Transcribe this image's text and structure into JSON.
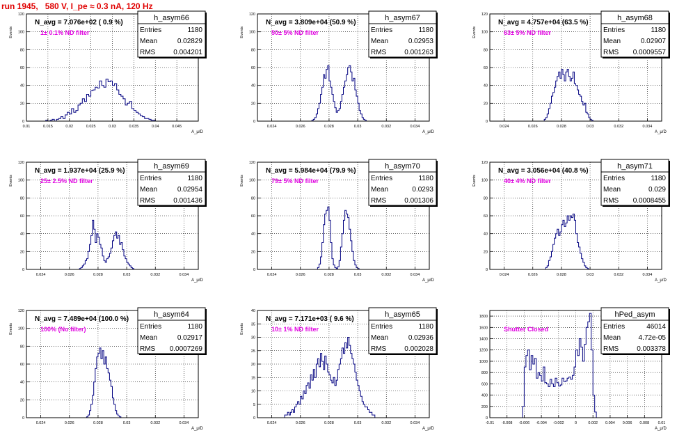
{
  "page_title": "run 1945,   580 V, I_pe ≈ 0.3 nA, 120 Hz",
  "colors": {
    "title": "#e00000",
    "histogram": "#000080",
    "annotation": "#e000e0",
    "grid": "#000000"
  },
  "chart_data": [
    {
      "type": "histogram",
      "hist_name": "h_asym66",
      "title": "N_avg = 7.076e+02 ( 0.9 %)",
      "annotation": "1± 0.1% ND filter",
      "stats": [
        {
          "label": "Entries",
          "value": "1180"
        },
        {
          "label": "Mean",
          "value": "0.02829"
        },
        {
          "label": "RMS",
          "value": "0.004201"
        }
      ],
      "xlabel": "A_μ/D",
      "ylabel": "Events",
      "xlim": [
        0.01,
        0.05
      ],
      "ylim": [
        0,
        120
      ],
      "xticks": [
        0.01,
        0.015,
        0.02,
        0.025,
        0.03,
        0.035,
        0.04,
        0.045
      ],
      "xtick_labels": [
        "0.01",
        "0.015",
        "0.02",
        "0.025",
        "0.03",
        "0.035",
        "0.04",
        "0.045"
      ],
      "yticks": [
        0,
        20,
        40,
        60,
        80,
        100,
        120
      ],
      "grid": true,
      "bins": {
        "start": 0.0145,
        "width": 0.0005,
        "values": [
          1,
          0,
          1,
          2,
          0,
          2,
          3,
          5,
          3,
          7,
          10,
          8,
          14,
          10,
          12,
          18,
          20,
          25,
          22,
          30,
          28,
          34,
          35,
          38,
          37,
          45,
          40,
          38,
          47,
          44,
          45,
          40,
          42,
          35,
          30,
          28,
          25,
          18,
          20,
          22,
          14,
          12,
          10,
          8,
          6,
          5,
          3,
          3,
          2,
          1,
          1
        ]
      }
    },
    {
      "type": "histogram",
      "hist_name": "h_asym67",
      "title": "N_avg = 3.809e+04 (50.9 %)",
      "annotation": "50± 5% ND filter",
      "stats": [
        {
          "label": "Entries",
          "value": "1180"
        },
        {
          "label": "Mean",
          "value": "0.02953"
        },
        {
          "label": "RMS",
          "value": "0.001263"
        }
      ],
      "xlabel": "A_μ/D",
      "ylabel": "Events",
      "xlim": [
        0.023,
        0.035
      ],
      "ylim": [
        0,
        120
      ],
      "xticks": [
        0.024,
        0.026,
        0.028,
        0.03,
        0.032,
        0.034
      ],
      "xtick_labels": [
        "0.024",
        "0.026",
        "0.028",
        "0.03",
        "0.032",
        "0.034"
      ],
      "yticks": [
        0,
        20,
        40,
        60,
        80,
        100,
        120
      ],
      "grid": true,
      "bins": {
        "start": 0.0268,
        "width": 0.0001,
        "values": [
          1,
          2,
          4,
          8,
          14,
          20,
          30,
          38,
          52,
          48,
          58,
          62,
          45,
          38,
          30,
          22,
          15,
          10,
          12,
          14,
          22,
          30,
          38,
          45,
          52,
          60,
          62,
          55,
          45,
          48,
          35,
          28,
          20,
          12,
          8,
          4,
          2,
          1
        ]
      }
    },
    {
      "type": "histogram",
      "hist_name": "h_asym68",
      "title": "N_avg = 4.757e+04 (63.5 %)",
      "annotation": "63± 5% ND filter",
      "stats": [
        {
          "label": "Entries",
          "value": "1180"
        },
        {
          "label": "Mean",
          "value": "0.02907"
        },
        {
          "label": "RMS",
          "value": "0.0009557"
        }
      ],
      "xlabel": "A_μ/D",
      "ylabel": "Events",
      "xlim": [
        0.023,
        0.035
      ],
      "ylim": [
        0,
        120
      ],
      "xticks": [
        0.024,
        0.026,
        0.028,
        0.03,
        0.032,
        0.034
      ],
      "xtick_labels": [
        "0.024",
        "0.026",
        "0.028",
        "0.03",
        "0.032",
        "0.034"
      ],
      "yticks": [
        0,
        20,
        40,
        60,
        80,
        100,
        120
      ],
      "grid": true,
      "bins": {
        "start": 0.0268,
        "width": 0.0001,
        "values": [
          2,
          4,
          8,
          14,
          20,
          28,
          32,
          38,
          45,
          50,
          55,
          48,
          58,
          52,
          45,
          55,
          58,
          50,
          45,
          48,
          55,
          42,
          40,
          35,
          30,
          28,
          22,
          18,
          20,
          10,
          8,
          4,
          2,
          1
        ]
      }
    },
    {
      "type": "histogram",
      "hist_name": "h_asym69",
      "title": "N_avg = 1.937e+04 (25.9 %)",
      "annotation": "25± 2.5% ND filter",
      "stats": [
        {
          "label": "Entries",
          "value": "1180"
        },
        {
          "label": "Mean",
          "value": "0.02954"
        },
        {
          "label": "RMS",
          "value": "0.001436"
        }
      ],
      "xlabel": "A_μ/D",
      "ylabel": "Events",
      "xlim": [
        0.023,
        0.035
      ],
      "ylim": [
        0,
        120
      ],
      "xticks": [
        0.024,
        0.026,
        0.028,
        0.03,
        0.032,
        0.034
      ],
      "xtick_labels": [
        "0.024",
        "0.026",
        "0.028",
        "0.03",
        "0.032",
        "0.034"
      ],
      "yticks": [
        0,
        20,
        40,
        60,
        80,
        100,
        120
      ],
      "grid": true,
      "bins": {
        "start": 0.0267,
        "width": 0.0001,
        "values": [
          1,
          2,
          4,
          6,
          10,
          12,
          20,
          28,
          38,
          55,
          45,
          30,
          40,
          36,
          28,
          24,
          15,
          10,
          8,
          12,
          14,
          18,
          24,
          32,
          38,
          42,
          35,
          38,
          28,
          30,
          22,
          15,
          12,
          8,
          6,
          4,
          2,
          1
        ]
      }
    },
    {
      "type": "histogram",
      "hist_name": "h_asym70",
      "title": "N_avg = 5.984e+04 (79.9 %)",
      "annotation": "79± 5% ND filter",
      "stats": [
        {
          "label": "Entries",
          "value": "1180"
        },
        {
          "label": "Mean",
          "value": "0.0293"
        },
        {
          "label": "RMS",
          "value": "0.001306"
        }
      ],
      "xlabel": "A_μ/D",
      "ylabel": "Events",
      "xlim": [
        0.023,
        0.035
      ],
      "ylim": [
        0,
        120
      ],
      "xticks": [
        0.024,
        0.026,
        0.028,
        0.03,
        0.032,
        0.034
      ],
      "xtick_labels": [
        "0.024",
        "0.026",
        "0.028",
        "0.03",
        "0.032",
        "0.034"
      ],
      "yticks": [
        0,
        20,
        40,
        60,
        80,
        100,
        120
      ],
      "grid": true,
      "bins": {
        "start": 0.0272,
        "width": 0.0001,
        "values": [
          2,
          6,
          14,
          30,
          50,
          62,
          66,
          70,
          55,
          30,
          12,
          5,
          2,
          1,
          3,
          10,
          25,
          40,
          55,
          66,
          62,
          58,
          45,
          32,
          20,
          10,
          5,
          2,
          1
        ]
      }
    },
    {
      "type": "histogram",
      "hist_name": "h_asym71",
      "title": "N_avg = 3.056e+04 (40.8 %)",
      "annotation": "40± 4% ND filter",
      "stats": [
        {
          "label": "Entries",
          "value": "1180"
        },
        {
          "label": "Mean",
          "value": "0.029"
        },
        {
          "label": "RMS",
          "value": "0.0008455"
        }
      ],
      "xlabel": "A_μ/D",
      "ylabel": "Events",
      "xlim": [
        0.023,
        0.035
      ],
      "ylim": [
        0,
        120
      ],
      "xticks": [
        0.024,
        0.026,
        0.028,
        0.03,
        0.032,
        0.034
      ],
      "xtick_labels": [
        "0.024",
        "0.026",
        "0.028",
        "0.03",
        "0.032",
        "0.034"
      ],
      "yticks": [
        0,
        20,
        40,
        60,
        80,
        100,
        120
      ],
      "grid": true,
      "bins": {
        "start": 0.0269,
        "width": 0.0001,
        "values": [
          2,
          4,
          10,
          14,
          20,
          28,
          35,
          40,
          45,
          38,
          42,
          50,
          55,
          48,
          52,
          60,
          55,
          60,
          58,
          62,
          55,
          40,
          30,
          25,
          18,
          12,
          8,
          4,
          2,
          1
        ]
      }
    },
    {
      "type": "histogram",
      "hist_name": "h_asym64",
      "title": "N_avg = 7.489e+04 (100.0 %)",
      "annotation": "100% (No filter)",
      "stats": [
        {
          "label": "Entries",
          "value": "1180"
        },
        {
          "label": "Mean",
          "value": "0.02917"
        },
        {
          "label": "RMS",
          "value": "0.0007269"
        }
      ],
      "xlabel": "A_μ/D",
      "ylabel": "Events",
      "xlim": [
        0.023,
        0.035
      ],
      "ylim": [
        0,
        120
      ],
      "xticks": [
        0.024,
        0.026,
        0.028,
        0.03,
        0.032,
        0.034
      ],
      "xtick_labels": [
        "0.024",
        "0.026",
        "0.028",
        "0.03",
        "0.032",
        "0.034"
      ],
      "yticks": [
        0,
        20,
        40,
        60,
        80,
        100,
        120
      ],
      "grid": true,
      "bins": {
        "start": 0.0272,
        "width": 0.0001,
        "values": [
          1,
          3,
          8,
          15,
          25,
          40,
          55,
          68,
          72,
          78,
          66,
          75,
          60,
          68,
          55,
          50,
          42,
          35,
          22,
          15,
          8,
          4,
          2,
          1
        ]
      }
    },
    {
      "type": "histogram",
      "hist_name": "h_asym65",
      "title": "N_avg = 7.171e+03 ( 9.6 %)",
      "annotation": "10± 1% ND filter",
      "stats": [
        {
          "label": "Entries",
          "value": "1180"
        },
        {
          "label": "Mean",
          "value": "0.02936"
        },
        {
          "label": "RMS",
          "value": "0.002028"
        }
      ],
      "xlabel": "A_μ/D",
      "ylabel": "Events",
      "xlim": [
        0.023,
        0.035
      ],
      "ylim": [
        0,
        40
      ],
      "xticks": [
        0.024,
        0.026,
        0.028,
        0.03,
        0.032,
        0.034
      ],
      "xtick_labels": [
        "0.024",
        "0.026",
        "0.028",
        "0.03",
        "0.032",
        "0.034"
      ],
      "yticks": [
        0,
        5,
        10,
        15,
        20,
        25,
        30,
        35,
        40
      ],
      "grid": true,
      "bins": {
        "start": 0.0248,
        "width": 0.0001,
        "values": [
          0,
          1,
          1,
          2,
          1,
          2,
          3,
          2,
          4,
          5,
          6,
          5,
          8,
          7,
          10,
          9,
          12,
          13,
          11,
          16,
          14,
          18,
          15,
          20,
          22,
          19,
          24,
          21,
          18,
          23,
          20,
          17,
          16,
          14,
          13,
          15,
          12,
          14,
          18,
          20,
          22,
          26,
          24,
          28,
          26,
          30,
          27,
          24,
          22,
          20,
          17,
          14,
          12,
          10,
          8,
          6,
          5,
          4,
          4,
          3,
          2,
          2,
          1,
          1
        ]
      }
    },
    {
      "type": "histogram",
      "hist_name": "hPed_asym",
      "title": "",
      "annotation": "Shutter Closed",
      "stats": [
        {
          "label": "Entries",
          "value": "46014"
        },
        {
          "label": "Mean",
          "value": "4.72e-05"
        },
        {
          "label": "RMS",
          "value": "0.003378"
        }
      ],
      "xlabel": "A_μ/D",
      "ylabel": "",
      "xlim": [
        -0.01,
        0.01
      ],
      "ylim": [
        0,
        1900
      ],
      "xticks": [
        -0.01,
        -0.008,
        -0.006,
        -0.004,
        -0.002,
        0,
        0.002,
        0.004,
        0.006,
        0.008,
        0.01
      ],
      "xtick_labels": [
        "-0.01",
        "-0.008",
        "-0.006",
        "-0.004",
        "-0.002",
        "0",
        "0.002",
        "0.004",
        "0.006",
        "0.008",
        "0.01"
      ],
      "yticks": [
        0,
        200,
        400,
        600,
        800,
        1000,
        1200,
        1400,
        1600,
        1800
      ],
      "grid": true,
      "bins": {
        "start": -0.0062,
        "width": 0.0002,
        "values": [
          200,
          900,
          1100,
          1200,
          850,
          1100,
          950,
          1050,
          700,
          800,
          750,
          650,
          900,
          620,
          600,
          550,
          680,
          600,
          550,
          700,
          620,
          560,
          580,
          700,
          640,
          650,
          700,
          720,
          680,
          750,
          900,
          1200,
          1100,
          1400,
          1250,
          1000,
          1300,
          1600,
          1700,
          1850,
          1200,
          400,
          100
        ]
      }
    }
  ]
}
